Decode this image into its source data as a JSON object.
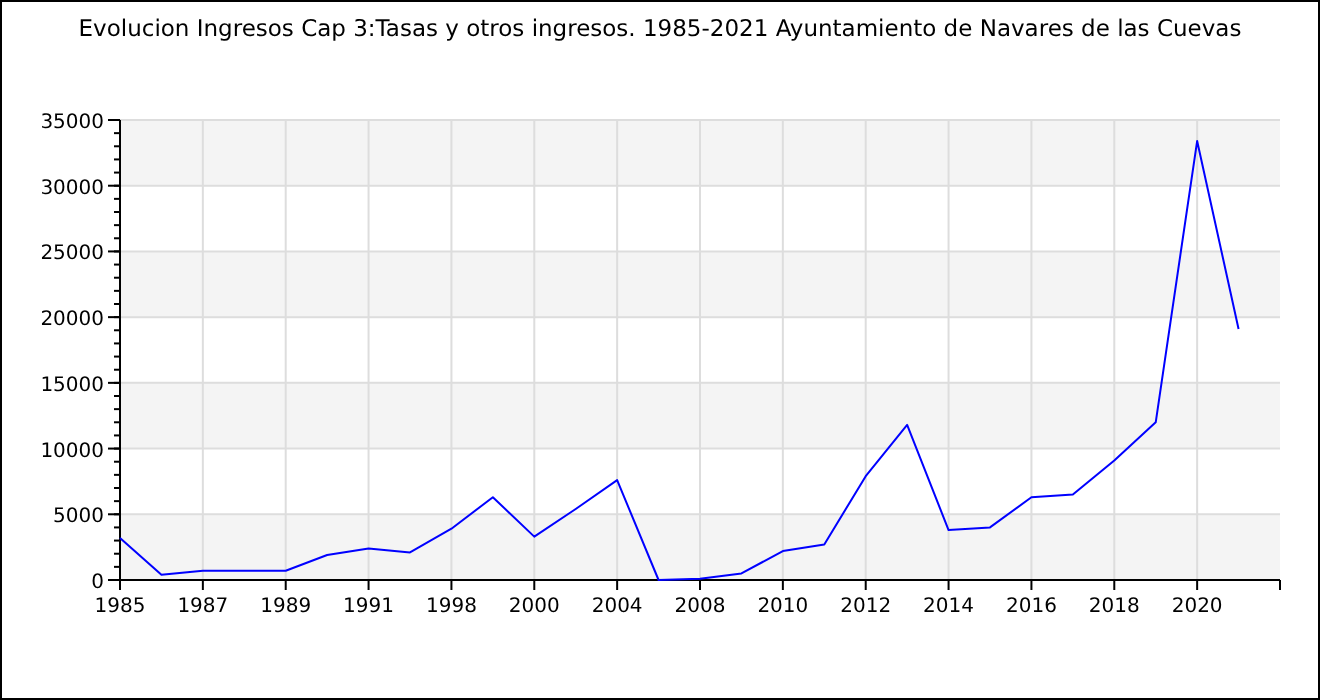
{
  "chart_data": {
    "type": "line",
    "title": "Evolucion Ingresos Cap 3:Tasas y otros ingresos. 1985-2021 Ayuntamiento de Navares de las Cuevas",
    "categories": [
      "1985",
      null,
      "1987",
      null,
      "1989",
      null,
      "1991",
      null,
      "1998",
      null,
      "2000",
      null,
      "2004",
      null,
      "2008",
      null,
      "2010",
      null,
      "2012",
      null,
      "2014",
      null,
      "2016",
      null,
      "2018",
      null,
      "2020",
      null
    ],
    "series": [
      {
        "color": "#0000ff",
        "values": [
          3200,
          400,
          700,
          700,
          700,
          1900,
          2400,
          2100,
          3900,
          6300,
          3300,
          5400,
          7600,
          0,
          100,
          500,
          2200,
          2700,
          7900,
          11800,
          3800,
          4000,
          6300,
          6500,
          9100,
          12000,
          33400,
          19100
        ]
      }
    ],
    "ylim": [
      0,
      35000
    ],
    "yticks": [
      0,
      5000,
      10000,
      15000,
      20000,
      25000,
      30000,
      35000
    ],
    "grid": true,
    "marker": "none",
    "line_style": "solid"
  }
}
